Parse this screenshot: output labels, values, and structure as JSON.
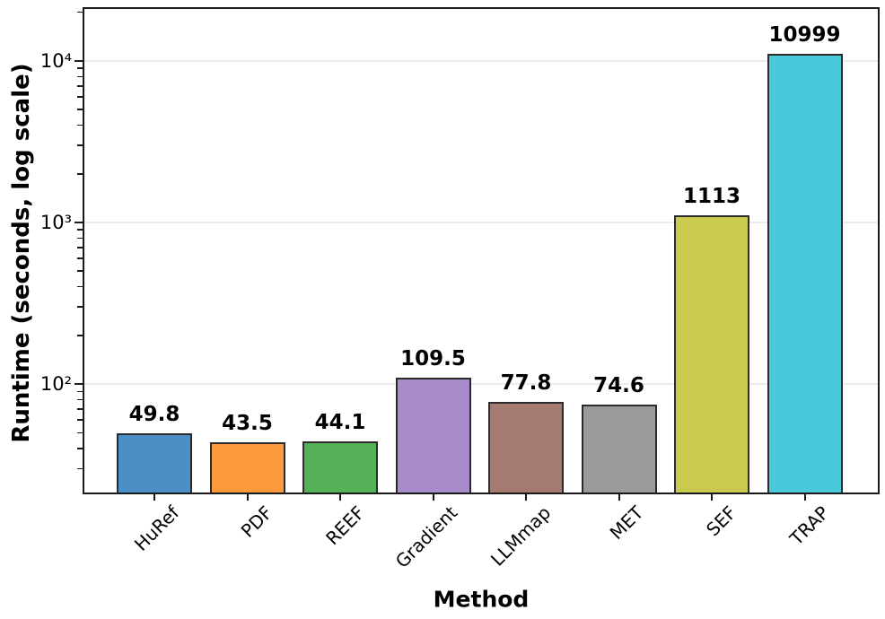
{
  "chart_data": {
    "type": "bar",
    "title": "",
    "xlabel": "Method",
    "ylabel": "Runtime (seconds, log scale)",
    "categories": [
      "HuRef",
      "PDF",
      "REEF",
      "Gradient",
      "LLMmap",
      "MET",
      "SEF",
      "TRAP"
    ],
    "values": [
      49.8,
      43.5,
      44.1,
      109.5,
      77.8,
      74.6,
      1113,
      10999
    ],
    "value_labels": [
      "49.8",
      "43.5",
      "44.1",
      "109.5",
      "77.8",
      "74.6",
      "1113",
      "10999"
    ],
    "bar_colors": [
      "#4b8fc6",
      "#fd9a3e",
      "#55b157",
      "#a88bcb",
      "#a57a70",
      "#9a9a9a",
      "#c9ca4e",
      "#48cada"
    ],
    "bar_edge_color": "#2b2b2b",
    "yscale": "log",
    "ylim": [
      20.8,
      21500
    ],
    "yticks": [
      {
        "value": 100,
        "label": "10²"
      },
      {
        "value": 1000,
        "label": "10³"
      },
      {
        "value": 10000,
        "label": "10⁴"
      }
    ],
    "minor_ticks": [
      30,
      40,
      50,
      60,
      70,
      80,
      90,
      200,
      300,
      400,
      500,
      600,
      700,
      800,
      900,
      2000,
      3000,
      4000,
      5000,
      6000,
      7000,
      8000,
      9000,
      20000
    ],
    "grid": "major-horizontal",
    "grid_color": "#ebebeb",
    "axis_color": "#1a1a1a",
    "background_color": "#ffffff"
  }
}
